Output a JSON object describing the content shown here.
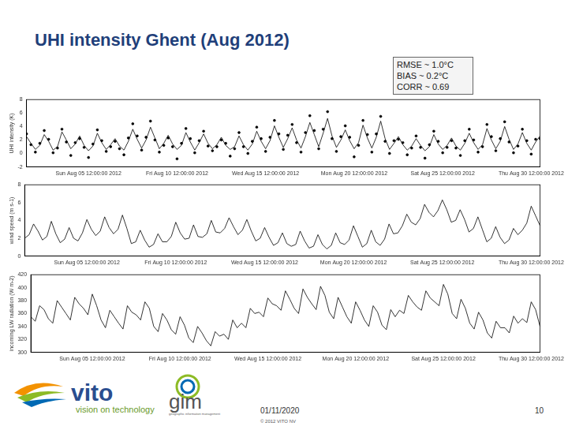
{
  "title": "UHI intensity Ghent (Aug 2012)",
  "stats": [
    "RMSE ~ 1.0°C",
    "BIAS ~ 0.2°C",
    "CORR ~ 0.69"
  ],
  "footer": {
    "logo_text": "vito",
    "tagline": "vision on technology",
    "logo2_text": "gim",
    "logo2_tagline": "geographic information management",
    "date": "01/11/2020",
    "copyright": "© 2012 VITO NV",
    "page": "10"
  },
  "chart_data": [
    {
      "type": "line",
      "y_label": "UHI intensity (K)",
      "x": [
        2,
        2.25,
        2.5,
        2.75,
        3,
        3.25,
        3.5,
        3.75,
        4,
        4.25,
        4.5,
        4.75,
        5,
        5.25,
        5.5,
        5.75,
        6,
        6.25,
        6.5,
        6.75,
        7,
        7.25,
        7.5,
        7.75,
        8,
        8.25,
        8.5,
        8.75,
        9,
        9.25,
        9.5,
        9.75,
        10,
        10.25,
        10.5,
        10.75,
        11,
        11.25,
        11.5,
        11.75,
        12,
        12.25,
        12.5,
        12.75,
        13,
        13.25,
        13.5,
        13.75,
        14,
        14.25,
        14.5,
        14.75,
        15,
        15.25,
        15.5,
        15.75,
        16,
        16.25,
        16.5,
        16.75,
        17,
        17.25,
        17.5,
        17.75,
        18,
        18.25,
        18.5,
        18.75,
        19,
        19.25,
        19.5,
        19.75,
        20,
        20.25,
        20.5,
        20.75,
        21,
        21.25,
        21.5,
        21.75,
        22,
        22.25,
        22.5,
        22.75,
        23,
        23.25,
        23.5,
        23.75,
        24,
        24.25,
        24.5,
        24.75,
        25,
        25.25,
        25.5,
        25.75,
        26,
        26.25,
        26.5,
        26.75,
        27,
        27.25,
        27.5,
        27.75,
        28,
        28.25,
        28.5,
        28.75,
        29,
        29.25,
        29.5,
        29.75,
        30,
        30.25,
        30.5,
        30.75,
        31
      ],
      "xlim": [
        2,
        31
      ],
      "xticks": [
        {
          "value": 5.5,
          "label": "Sun Aug 05 12:00:00 2012"
        },
        {
          "value": 10.5,
          "label": "Fri Aug 10 12:00:00 2012"
        },
        {
          "value": 15.5,
          "label": "Wed Aug 15 12:00:00 2012"
        },
        {
          "value": 20.5,
          "label": "Mon Aug 20 12:00:00 2012"
        },
        {
          "value": 25.5,
          "label": "Sat Aug 25 12:00:00 2012"
        },
        {
          "value": 30.5,
          "label": "Thu Aug 30 12:00:00 2012"
        }
      ],
      "ylim": [
        -2,
        8
      ],
      "yticks": [
        -2,
        0,
        2,
        4,
        6,
        8
      ],
      "grid": false,
      "series": [
        {
          "color": "#000000",
          "marker": "none",
          "line_style": "solid",
          "values": [
            2.5,
            1.5,
            0.6,
            1.2,
            2.8,
            1.8,
            0.5,
            1.0,
            3.2,
            2.0,
            0.7,
            1.4,
            2.6,
            1.2,
            0.4,
            1.1,
            3.0,
            1.6,
            0.6,
            1.3,
            2.2,
            1.1,
            0.5,
            1.8,
            3.6,
            2.1,
            0.8,
            2.0,
            3.9,
            2.3,
            0.7,
            1.5,
            2.7,
            1.4,
            0.6,
            1.2,
            3.1,
            1.7,
            0.5,
            1.6,
            2.9,
            1.5,
            0.7,
            1.3,
            2.4,
            1.2,
            0.6,
            1.0,
            2.6,
            1.3,
            0.5,
            1.4,
            3.3,
            1.8,
            0.7,
            1.9,
            4.1,
            2.4,
            0.9,
            2.2,
            3.8,
            2.0,
            0.8,
            2.5,
            4.6,
            2.8,
            1.0,
            3.0,
            5.2,
            2.6,
            0.9,
            2.0,
            3.5,
            1.9,
            0.7,
            1.6,
            4.2,
            2.3,
            0.8,
            2.4,
            4.8,
            2.2,
            0.6,
            1.5,
            2.5,
            1.3,
            0.5,
            1.1,
            2.2,
            1.2,
            0.4,
            1.0,
            2.8,
            1.4,
            0.6,
            1.2,
            2.3,
            1.1,
            0.5,
            1.5,
            3.0,
            1.6,
            0.6,
            1.3,
            3.7,
            2.0,
            0.7,
            1.8,
            4.0,
            2.1,
            0.6,
            1.4,
            3.1,
            1.5,
            0.5,
            1.7,
            2.6
          ]
        },
        {
          "color": "#000000",
          "marker": "circle",
          "line_style": "none",
          "values": [
            2.9,
            1.3,
            0.2,
            1.5,
            3.4,
            2.1,
            0.1,
            0.8,
            3.6,
            1.7,
            -0.3,
            1.6,
            2.2,
            0.9,
            -0.6,
            1.4,
            3.5,
            1.9,
            0.3,
            1.0,
            1.8,
            0.7,
            -0.2,
            2.3,
            4.4,
            2.6,
            0.5,
            2.4,
            4.8,
            2.0,
            0.2,
            1.2,
            2.3,
            1.0,
            -0.8,
            1.5,
            3.7,
            2.2,
            0.1,
            1.9,
            3.3,
            1.1,
            0.4,
            1.0,
            2.0,
            1.5,
            -0.4,
            0.7,
            3.1,
            1.0,
            0.0,
            1.8,
            3.9,
            2.2,
            0.3,
            2.4,
            4.9,
            2.9,
            0.6,
            2.7,
            4.3,
            1.6,
            0.2,
            3.1,
            5.6,
            3.4,
            0.7,
            3.6,
            6.2,
            2.2,
            0.3,
            2.5,
            4.1,
            2.4,
            -0.5,
            1.2,
            4.9,
            2.8,
            0.2,
            2.9,
            5.5,
            1.8,
            0.0,
            1.9,
            2.1,
            1.6,
            -0.2,
            0.8,
            2.6,
            0.9,
            -0.7,
            1.3,
            3.3,
            1.8,
            0.1,
            0.9,
            1.9,
            0.8,
            -0.3,
            1.9,
            3.6,
            2.0,
            0.2,
            1.0,
            4.3,
            2.5,
            0.4,
            2.2,
            4.7,
            1.7,
            0.1,
            1.1,
            3.6,
            1.9,
            -0.1,
            2.1,
            2.2
          ]
        }
      ]
    },
    {
      "type": "line",
      "y_label": "wind speed (m s-1)",
      "x": [
        2,
        2.25,
        2.5,
        2.75,
        3,
        3.25,
        3.5,
        3.75,
        4,
        4.25,
        4.5,
        4.75,
        5,
        5.25,
        5.5,
        5.75,
        6,
        6.25,
        6.5,
        6.75,
        7,
        7.25,
        7.5,
        7.75,
        8,
        8.25,
        8.5,
        8.75,
        9,
        9.25,
        9.5,
        9.75,
        10,
        10.25,
        10.5,
        10.75,
        11,
        11.25,
        11.5,
        11.75,
        12,
        12.25,
        12.5,
        12.75,
        13,
        13.25,
        13.5,
        13.75,
        14,
        14.25,
        14.5,
        14.75,
        15,
        15.25,
        15.5,
        15.75,
        16,
        16.25,
        16.5,
        16.75,
        17,
        17.25,
        17.5,
        17.75,
        18,
        18.25,
        18.5,
        18.75,
        19,
        19.25,
        19.5,
        19.75,
        20,
        20.25,
        20.5,
        20.75,
        21,
        21.25,
        21.5,
        21.75,
        22,
        22.25,
        22.5,
        22.75,
        23,
        23.25,
        23.5,
        23.75,
        24,
        24.25,
        24.5,
        24.75,
        25,
        25.25,
        25.5,
        25.75,
        26,
        26.25,
        26.5,
        26.75,
        27,
        27.25,
        27.5,
        27.75,
        28,
        28.25,
        28.5,
        28.75,
        29,
        29.25,
        29.5,
        29.75,
        30,
        30.25,
        30.5,
        30.75,
        31
      ],
      "xlim": [
        2,
        31
      ],
      "xticks": [
        {
          "value": 5.5,
          "label": "Sun Aug 05 12:00:00 2012"
        },
        {
          "value": 10.5,
          "label": "Fri Aug 10 12:00:00 2012"
        },
        {
          "value": 15.5,
          "label": "Wed Aug 15 12:00:00 2012"
        },
        {
          "value": 20.5,
          "label": "Mon Aug 20 12:00:00 2012"
        },
        {
          "value": 25.5,
          "label": "Sat Aug 25 12:00:00 2012"
        },
        {
          "value": 30.5,
          "label": "Thu Aug 30 12:00:00 2012"
        }
      ],
      "ylim": [
        0,
        8
      ],
      "yticks": [
        0,
        2,
        4,
        6,
        8
      ],
      "grid": false,
      "series": [
        {
          "color": "#000000",
          "marker": "none",
          "line_style": "solid",
          "values": [
            2.0,
            2.4,
            3.6,
            2.8,
            1.8,
            2.2,
            3.9,
            2.5,
            1.5,
            1.9,
            3.2,
            2.0,
            1.7,
            2.6,
            4.1,
            3.0,
            2.3,
            2.8,
            4.4,
            3.2,
            2.5,
            3.0,
            4.6,
            3.1,
            1.4,
            1.6,
            2.9,
            1.8,
            1.0,
            1.3,
            2.5,
            1.6,
            1.6,
            2.2,
            3.8,
            2.6,
            1.9,
            2.0,
            3.5,
            2.2,
            2.1,
            2.5,
            4.0,
            2.7,
            2.6,
            3.1,
            4.3,
            3.3,
            2.4,
            2.9,
            4.1,
            2.8,
            1.7,
            2.0,
            3.2,
            2.1,
            1.2,
            1.5,
            2.6,
            1.4,
            1.1,
            1.3,
            2.8,
            1.7,
            0.9,
            1.1,
            2.4,
            1.3,
            0.8,
            1.2,
            2.6,
            1.5,
            1.3,
            1.8,
            3.4,
            2.2,
            1.0,
            1.4,
            2.9,
            1.6,
            1.2,
            1.9,
            3.6,
            2.5,
            2.6,
            3.4,
            4.7,
            3.8,
            3.5,
            4.2,
            5.8,
            4.9,
            4.4,
            5.1,
            6.3,
            5.2,
            3.8,
            4.0,
            5.2,
            4.1,
            2.7,
            3.1,
            4.4,
            3.0,
            1.6,
            2.0,
            3.3,
            2.1,
            1.4,
            1.8,
            3.1,
            2.4,
            2.9,
            3.7,
            5.6,
            4.5,
            3.4
          ]
        }
      ]
    },
    {
      "type": "line",
      "y_label": "incoming LW radiation (W m-2)",
      "x": [
        2,
        2.25,
        2.5,
        2.75,
        3,
        3.25,
        3.5,
        3.75,
        4,
        4.25,
        4.5,
        4.75,
        5,
        5.25,
        5.5,
        5.75,
        6,
        6.25,
        6.5,
        6.75,
        7,
        7.25,
        7.5,
        7.75,
        8,
        8.25,
        8.5,
        8.75,
        9,
        9.25,
        9.5,
        9.75,
        10,
        10.25,
        10.5,
        10.75,
        11,
        11.25,
        11.5,
        11.75,
        12,
        12.25,
        12.5,
        12.75,
        13,
        13.25,
        13.5,
        13.75,
        14,
        14.25,
        14.5,
        14.75,
        15,
        15.25,
        15.5,
        15.75,
        16,
        16.25,
        16.5,
        16.75,
        17,
        17.25,
        17.5,
        17.75,
        18,
        18.25,
        18.5,
        18.75,
        19,
        19.25,
        19.5,
        19.75,
        20,
        20.25,
        20.5,
        20.75,
        21,
        21.25,
        21.5,
        21.75,
        22,
        22.25,
        22.5,
        22.75,
        23,
        23.25,
        23.5,
        23.75,
        24,
        24.25,
        24.5,
        24.75,
        25,
        25.25,
        25.5,
        25.75,
        26,
        26.25,
        26.5,
        26.75,
        27,
        27.25,
        27.5,
        27.75,
        28,
        28.25,
        28.5,
        28.75,
        29,
        29.25,
        29.5,
        29.75,
        30,
        30.25,
        30.5,
        30.75,
        31
      ],
      "xlim": [
        2,
        31
      ],
      "xticks": [
        {
          "value": 5.5,
          "label": "Sun Aug 05 12:00:00 2012"
        },
        {
          "value": 10.5,
          "label": "Fri Aug 10 12:00:00 2012"
        },
        {
          "value": 15.5,
          "label": "Wed Aug 15 12:00:00 2012"
        },
        {
          "value": 20.5,
          "label": "Mon Aug 20 12:00:00 2012"
        },
        {
          "value": 25.5,
          "label": "Sat Aug 25 12:00:00 2012"
        },
        {
          "value": 30.5,
          "label": "Thu Aug 30 12:00:00 2012"
        }
      ],
      "ylim": [
        300,
        420
      ],
      "yticks": [
        300,
        320,
        340,
        360,
        380,
        400,
        420
      ],
      "grid": false,
      "series": [
        {
          "color": "#000000",
          "marker": "none",
          "line_style": "solid",
          "values": [
            355,
            348,
            372,
            366,
            352,
            345,
            380,
            370,
            360,
            350,
            385,
            375,
            368,
            358,
            390,
            372,
            350,
            338,
            365,
            355,
            345,
            336,
            372,
            362,
            358,
            350,
            378,
            368,
            340,
            332,
            360,
            350,
            335,
            328,
            355,
            342,
            322,
            315,
            340,
            330,
            318,
            310,
            332,
            325,
            328,
            320,
            350,
            338,
            345,
            338,
            368,
            360,
            362,
            355,
            384,
            375,
            372,
            365,
            395,
            382,
            368,
            360,
            398,
            385,
            375,
            366,
            402,
            388,
            362,
            352,
            385,
            370,
            355,
            345,
            378,
            365,
            350,
            340,
            372,
            362,
            342,
            335,
            366,
            355,
            365,
            360,
            388,
            378,
            370,
            365,
            395,
            384,
            378,
            372,
            405,
            390,
            360,
            352,
            382,
            368,
            345,
            336,
            362,
            350,
            330,
            322,
            348,
            338,
            338,
            330,
            356,
            345,
            352,
            346,
            378,
            366,
            340
          ]
        }
      ]
    }
  ]
}
